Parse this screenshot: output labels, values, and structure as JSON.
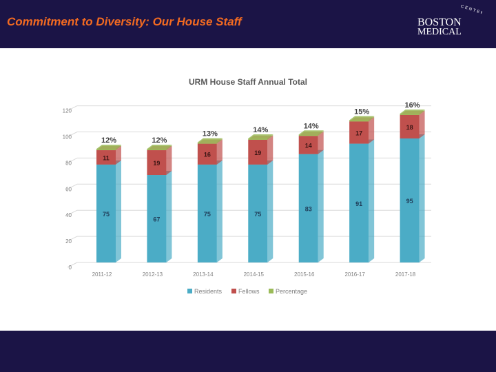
{
  "slide": {
    "title": "Commitment to Diversity: Our House Staff",
    "logo_line1": "BOSTON",
    "logo_line2": "MEDICAL",
    "logo_arc": "CENTER"
  },
  "colors": {
    "header_bg": "#1b1446",
    "title_text": "#f26a21",
    "residents": "#4bacc6",
    "fellows": "#c0504d",
    "percentage": "#9bbb59"
  },
  "chart_data": {
    "type": "bar",
    "stacked": true,
    "title": "URM House Staff Annual Total",
    "categories": [
      "2011-12",
      "2012-13",
      "2013-14",
      "2014-15",
      "2015-16",
      "2016-17",
      "2017-18"
    ],
    "series": [
      {
        "name": "Residents",
        "values": [
          75,
          67,
          75,
          75,
          83,
          91,
          95
        ]
      },
      {
        "name": "Fellows",
        "values": [
          11,
          19,
          16,
          19,
          14,
          17,
          18
        ]
      },
      {
        "name": "Percentage",
        "values": [
          1,
          1,
          1,
          1,
          1,
          1,
          1
        ]
      }
    ],
    "percent_labels": [
      "12%",
      "12%",
      "13%",
      "14%",
      "14%",
      "15%",
      "16%"
    ],
    "y_ticks": [
      "0",
      "20",
      "40",
      "60",
      "80",
      "100",
      "120"
    ],
    "ylim": [
      0,
      120
    ],
    "legend": [
      "Residents",
      "Fellows",
      "Percentage"
    ],
    "legend_position": "bottom",
    "grid": true
  }
}
